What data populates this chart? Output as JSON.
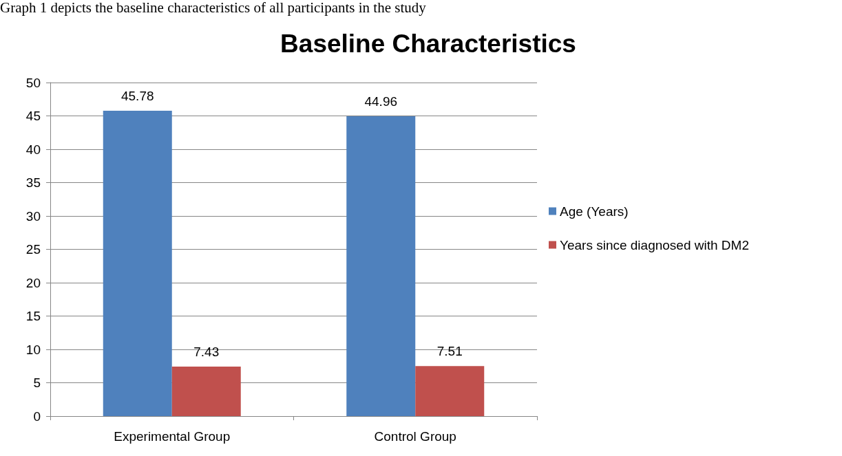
{
  "chart_data": {
    "type": "bar",
    "title": "Baseline Characteristics",
    "annotations": [
      "Graph 1 depicts the baseline characteristics of all participants in the study"
    ],
    "categories": [
      "Experimental Group",
      "Control Group"
    ],
    "series": [
      {
        "name": "Age (Years)",
        "color": "#4f81bd",
        "values": [
          45.78,
          44.96
        ]
      },
      {
        "name": "Years since diagnosed with DM2",
        "color": "#c0504d",
        "values": [
          7.43,
          7.51
        ]
      }
    ],
    "ylim": [
      0,
      50
    ],
    "yticks": [
      0,
      5,
      10,
      15,
      20,
      25,
      30,
      35,
      40,
      45,
      50
    ],
    "grid": "y",
    "legend": "right",
    "data_labels": true
  }
}
